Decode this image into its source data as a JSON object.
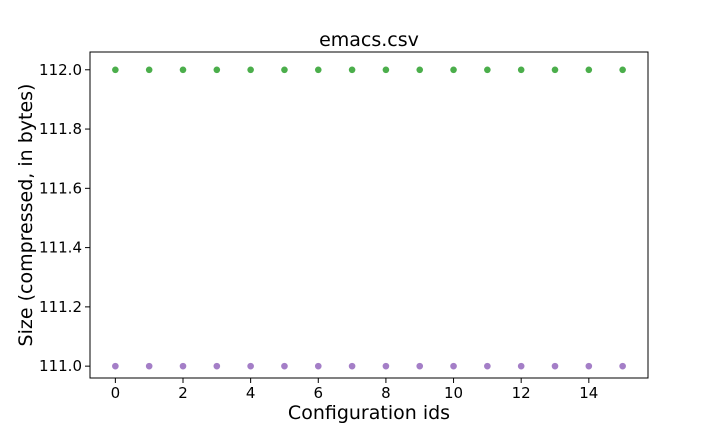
{
  "chart_data": {
    "type": "scatter",
    "title": "emacs.csv",
    "xlabel": "Configuration ids",
    "ylabel": "Size (compressed, in bytes)",
    "xlim": [
      -0.75,
      15.75
    ],
    "ylim": [
      110.96,
      112.06
    ],
    "x_ticks": [
      0,
      2,
      4,
      6,
      8,
      10,
      12,
      14
    ],
    "x_tick_labels": [
      "0",
      "2",
      "4",
      "6",
      "8",
      "10",
      "12",
      "14"
    ],
    "y_ticks": [
      111.0,
      111.2,
      111.4,
      111.6,
      111.8,
      112.0
    ],
    "y_tick_labels": [
      "111.0",
      "111.2",
      "111.4",
      "111.6",
      "111.8",
      "112.0"
    ],
    "grid": false,
    "series": [
      {
        "color": "#2ca02c",
        "x": [
          0,
          1,
          2,
          3,
          4,
          5,
          6,
          7,
          8,
          9,
          10,
          11,
          12,
          13,
          14,
          15
        ],
        "y": [
          112.0,
          112.0,
          112.0,
          112.0,
          112.0,
          112.0,
          112.0,
          112.0,
          112.0,
          112.0,
          112.0,
          112.0,
          112.0,
          112.0,
          112.0,
          112.0
        ]
      },
      {
        "color": "#9467bd",
        "x": [
          0,
          1,
          2,
          3,
          4,
          5,
          6,
          7,
          8,
          9,
          10,
          11,
          12,
          13,
          14,
          15
        ],
        "y": [
          111.0,
          111.0,
          111.0,
          111.0,
          111.0,
          111.0,
          111.0,
          111.0,
          111.0,
          111.0,
          111.0,
          111.0,
          111.0,
          111.0,
          111.0,
          111.0
        ]
      }
    ]
  }
}
